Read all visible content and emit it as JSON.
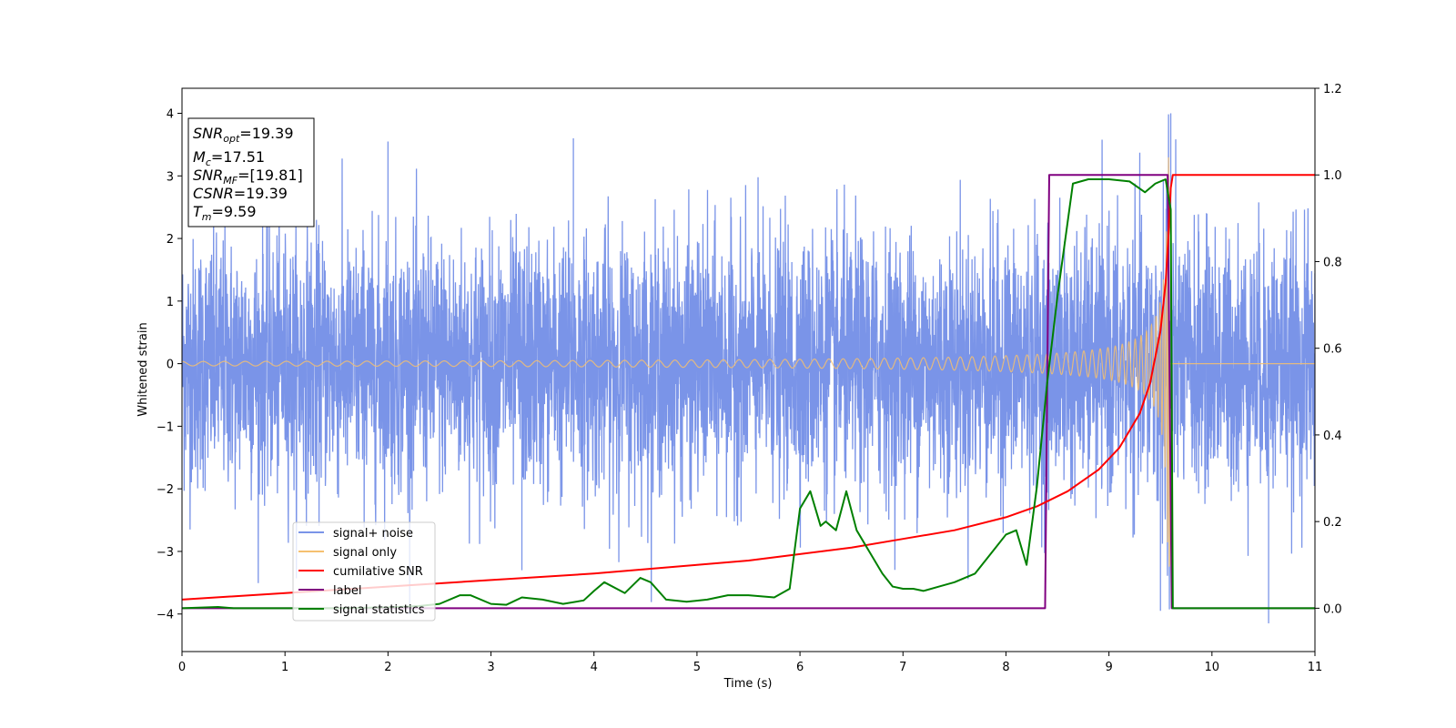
{
  "chart_data": {
    "type": "line",
    "title": "",
    "xlabel": "Time (s)",
    "ylabel": "Whitened strain",
    "xlim": [
      0,
      11
    ],
    "ylim": [
      -4.6,
      4.4
    ],
    "y2lim": [
      -0.1,
      1.2
    ],
    "x_ticks": [
      "0",
      "1",
      "2",
      "3",
      "4",
      "5",
      "6",
      "7",
      "8",
      "9",
      "10",
      "11"
    ],
    "y_ticks": [
      "−4",
      "−3",
      "−2",
      "−1",
      "0",
      "1",
      "2",
      "3",
      "4"
    ],
    "y2_ticks": [
      "0.0",
      "0.2",
      "0.4",
      "0.6",
      "0.8",
      "1.0",
      "1.2"
    ],
    "grid": false,
    "legend_position": "lower-left",
    "info_box": {
      "snr_opt": {
        "base": "SNR",
        "sub": "opt",
        "value": "=19.39"
      },
      "mc": {
        "base": "M",
        "sub": "c",
        "value": "=17.51"
      },
      "snr_mf": {
        "base": "SNR",
        "sub": "MF",
        "value": "=[19.81]"
      },
      "csnr": {
        "base": "CSNR",
        "sub": "",
        "value": "=19.39"
      },
      "tm": {
        "base": "T",
        "sub": "m",
        "value": "=9.59"
      }
    },
    "series": [
      {
        "name": "signal+ noise",
        "color": "#7a94e8",
        "axis": "left",
        "description": "noise around 0",
        "noise_sigma": 1.0,
        "peaks": [
          [
            2.0,
            3.55
          ],
          [
            3.8,
            3.6
          ],
          [
            9.6,
            4.0
          ],
          [
            10.55,
            -4.15
          ],
          [
            9.5,
            -3.95
          ],
          [
            3.3,
            -3.3
          ]
        ]
      },
      {
        "name": "signal only",
        "color": "#f5c070",
        "axis": "left",
        "merger_time": 9.59,
        "end_amplitude": 3.3
      },
      {
        "name": "cumilative SNR",
        "color": "#ff0000",
        "axis": "right",
        "x": [
          0,
          1,
          2,
          3,
          4,
          5,
          5.5,
          6,
          6.5,
          7,
          7.5,
          8,
          8.3,
          8.6,
          8.9,
          9.1,
          9.3,
          9.4,
          9.5,
          9.55,
          9.58,
          9.6,
          9.62,
          11
        ],
        "values": [
          0.02,
          0.035,
          0.05,
          0.065,
          0.08,
          0.1,
          0.11,
          0.125,
          0.14,
          0.16,
          0.18,
          0.21,
          0.235,
          0.27,
          0.32,
          0.37,
          0.45,
          0.52,
          0.64,
          0.75,
          0.87,
          0.97,
          1.0,
          1.0
        ]
      },
      {
        "name": "label",
        "color": "#800080",
        "axis": "right",
        "x": [
          0,
          8.38,
          8.42,
          9.57,
          9.61,
          11
        ],
        "values": [
          0,
          0,
          1,
          1,
          0,
          0
        ]
      },
      {
        "name": "signal statistics",
        "color": "#008000",
        "axis": "right",
        "x": [
          0,
          0.35,
          0.5,
          1.0,
          1.5,
          2.0,
          2.3,
          2.5,
          2.7,
          2.8,
          3.0,
          3.15,
          3.3,
          3.5,
          3.7,
          3.9,
          4.0,
          4.1,
          4.3,
          4.45,
          4.55,
          4.7,
          4.9,
          5.1,
          5.3,
          5.5,
          5.75,
          5.9,
          6.0,
          6.1,
          6.2,
          6.25,
          6.35,
          6.45,
          6.55,
          6.7,
          6.8,
          6.9,
          7.0,
          7.1,
          7.2,
          7.35,
          7.5,
          7.6,
          7.7,
          7.8,
          7.9,
          8.0,
          8.1,
          8.2,
          8.3,
          8.4,
          8.5,
          8.65,
          8.8,
          9.0,
          9.2,
          9.35,
          9.45,
          9.55,
          9.6,
          9.62,
          11
        ],
        "values": [
          0,
          0.003,
          0,
          0,
          0,
          0.002,
          0.005,
          0.01,
          0.03,
          0.03,
          0.01,
          0.008,
          0.025,
          0.02,
          0.01,
          0.018,
          0.04,
          0.06,
          0.035,
          0.07,
          0.06,
          0.02,
          0.015,
          0.02,
          0.03,
          0.03,
          0.025,
          0.045,
          0.23,
          0.27,
          0.19,
          0.2,
          0.18,
          0.27,
          0.18,
          0.12,
          0.08,
          0.05,
          0.045,
          0.045,
          0.04,
          0.05,
          0.06,
          0.07,
          0.08,
          0.11,
          0.14,
          0.17,
          0.18,
          0.1,
          0.28,
          0.52,
          0.72,
          0.98,
          0.99,
          0.99,
          0.985,
          0.96,
          0.98,
          0.99,
          0.92,
          0.0,
          0.0
        ]
      }
    ]
  }
}
